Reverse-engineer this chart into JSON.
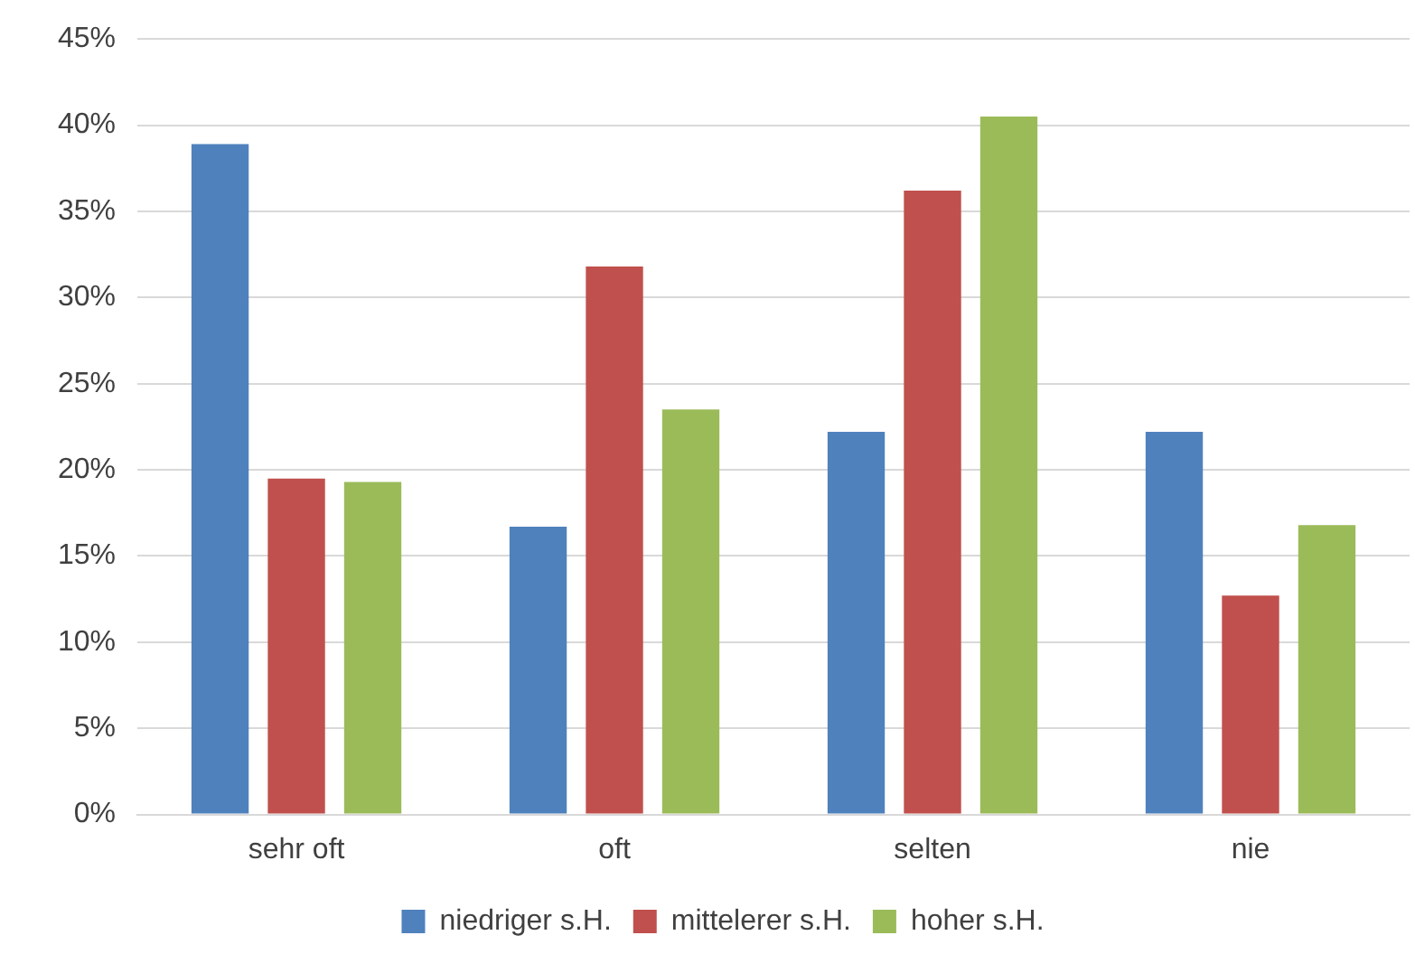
{
  "chart_data": {
    "type": "bar",
    "categories": [
      "sehr oft",
      "oft",
      "selten",
      "nie"
    ],
    "series": [
      {
        "name": "niedriger s.H.",
        "color": "#4f81bd",
        "values": [
          38.9,
          16.7,
          22.2,
          22.2
        ]
      },
      {
        "name": "mittelerer s.H.",
        "color": "#c0504d",
        "values": [
          19.5,
          31.8,
          36.2,
          12.7
        ]
      },
      {
        "name": "hoher s.H.",
        "color": "#9bbb59",
        "values": [
          19.3,
          23.5,
          40.5,
          16.8
        ]
      }
    ],
    "ylim": [
      0,
      45
    ],
    "yticks": [
      {
        "value": 0,
        "label": "0%"
      },
      {
        "value": 5,
        "label": "5%"
      },
      {
        "value": 10,
        "label": "10%"
      },
      {
        "value": 15,
        "label": "15%"
      },
      {
        "value": 20,
        "label": "20%"
      },
      {
        "value": 25,
        "label": "25%"
      },
      {
        "value": 30,
        "label": "30%"
      },
      {
        "value": 35,
        "label": "35%"
      },
      {
        "value": 40,
        "label": "40%"
      },
      {
        "value": 45,
        "label": "45%"
      }
    ],
    "grid": "y",
    "legend": "bottom"
  }
}
